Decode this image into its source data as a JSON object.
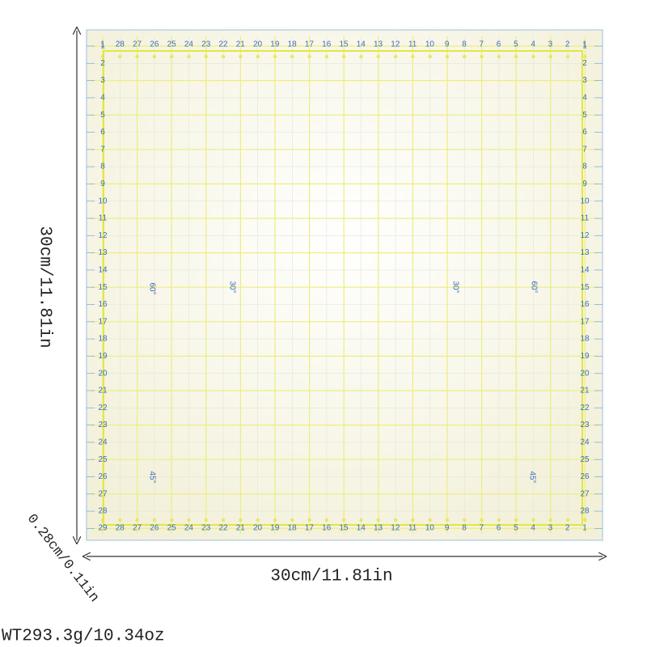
{
  "labels": {
    "height": "30cm/11.81in",
    "width": "30cm/11.81in",
    "thickness": "0.28cm/0.11in",
    "weight": "WT293.3g/10.34oz"
  },
  "ruler": {
    "top": [
      1,
      28,
      27,
      26,
      25,
      24,
      23,
      22,
      21,
      20,
      19,
      18,
      17,
      16,
      15,
      14,
      13,
      12,
      11,
      10,
      9,
      8,
      7,
      6,
      5,
      4,
      3,
      2,
      1
    ],
    "bottom": [
      29,
      28,
      27,
      26,
      25,
      24,
      23,
      22,
      21,
      20,
      19,
      18,
      17,
      16,
      15,
      14,
      13,
      12,
      11,
      10,
      9,
      8,
      7,
      6,
      5,
      4,
      3,
      2,
      1
    ],
    "left": [
      1,
      2,
      3,
      4,
      5,
      6,
      7,
      8,
      9,
      10,
      11,
      12,
      13,
      14,
      15,
      16,
      17,
      18,
      19,
      20,
      21,
      22,
      23,
      24,
      25,
      26,
      27,
      28
    ],
    "right": [
      1,
      2,
      3,
      4,
      5,
      6,
      7,
      8,
      9,
      10,
      11,
      12,
      13,
      14,
      15,
      16,
      17,
      18,
      19,
      20,
      21,
      22,
      23,
      24,
      25,
      26,
      27,
      28
    ],
    "angles": [
      "60°",
      "30°",
      "30°",
      "60°",
      "45°",
      "45°"
    ]
  }
}
